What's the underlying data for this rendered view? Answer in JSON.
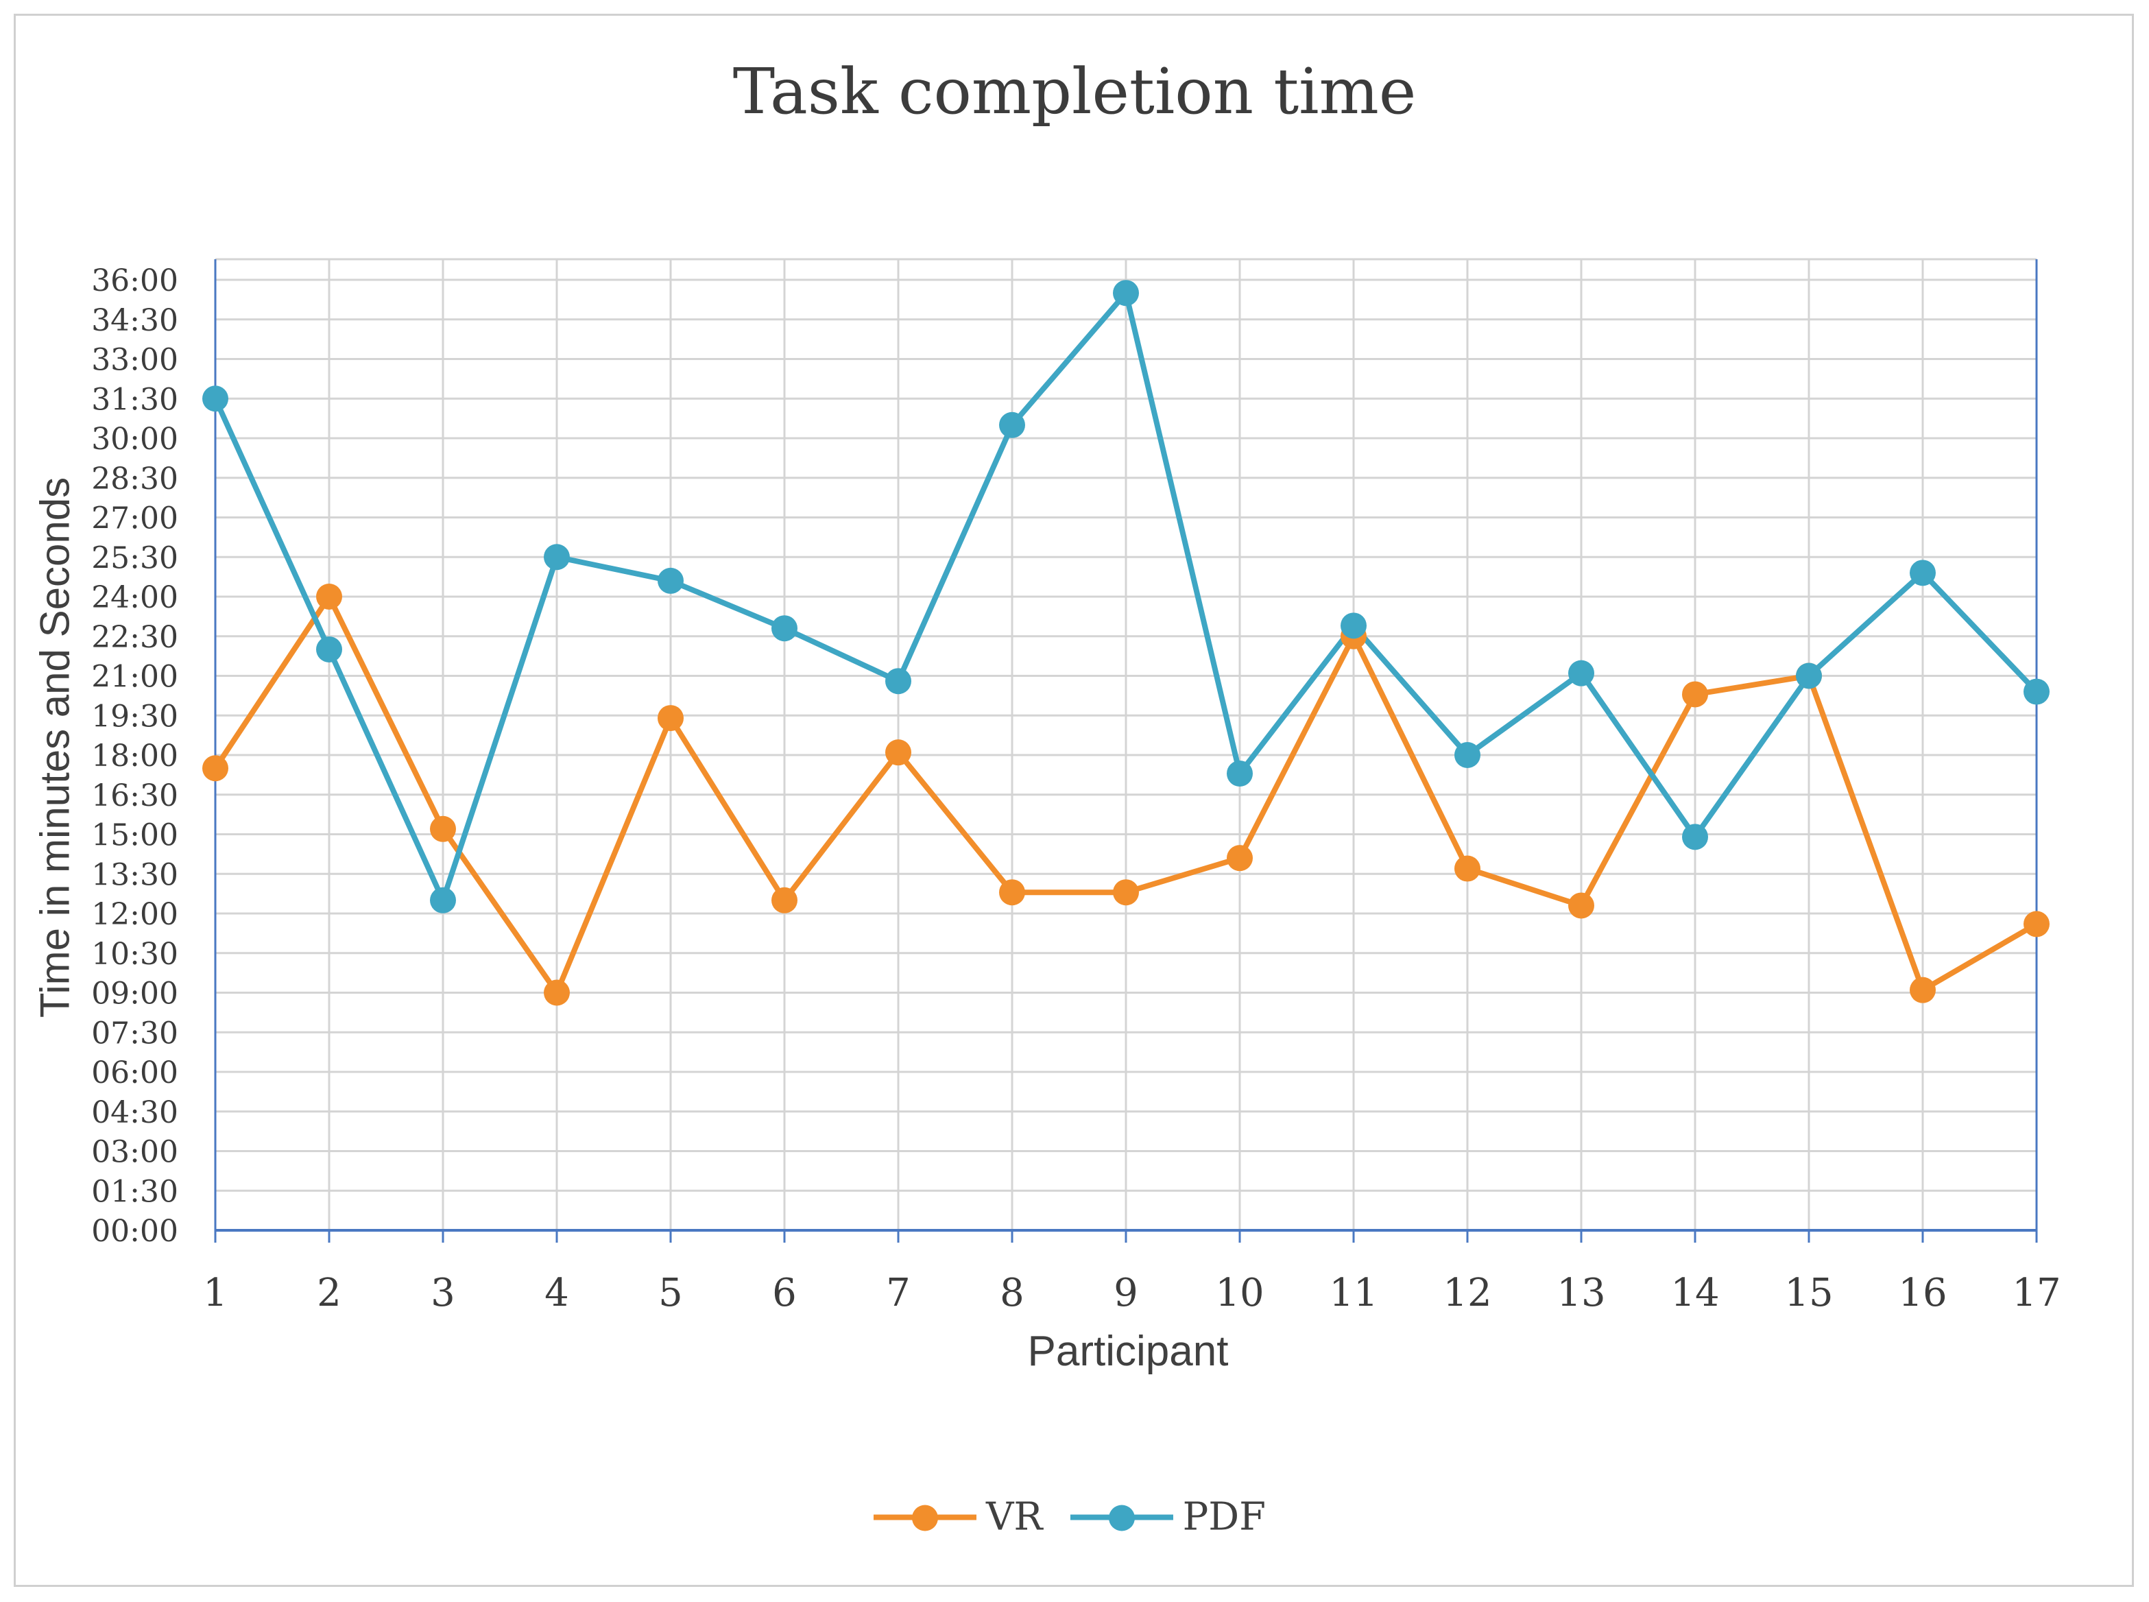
{
  "chart_data": {
    "type": "line",
    "title": "Task completion time",
    "xlabel": "Participant",
    "ylabel": "Time in minutes and Seconds",
    "categories": [
      "1",
      "2",
      "3",
      "4",
      "5",
      "6",
      "7",
      "8",
      "9",
      "10",
      "11",
      "12",
      "13",
      "14",
      "15",
      "16",
      "17"
    ],
    "y_ticks": [
      "00:00",
      "01:30",
      "03:00",
      "04:30",
      "06:00",
      "07:30",
      "09:00",
      "10:30",
      "12:00",
      "13:30",
      "15:00",
      "16:30",
      "18:00",
      "19:30",
      "21:00",
      "22:30",
      "24:00",
      "25:30",
      "27:00",
      "28:30",
      "30:00",
      "31:30",
      "33:00",
      "34:30",
      "36:00"
    ],
    "ylim_minutes": [
      0,
      36
    ],
    "y_units": "minutes",
    "grid": true,
    "legend_position": "bottom",
    "series": [
      {
        "name": "VR",
        "color": "#f28e2b",
        "values": [
          17.5,
          24.0,
          15.2,
          9.0,
          19.4,
          12.5,
          18.1,
          12.8,
          12.8,
          14.1,
          22.5,
          13.7,
          12.3,
          20.3,
          21.0,
          9.1,
          11.6
        ]
      },
      {
        "name": "PDF",
        "color": "#3ea6c4",
        "values": [
          31.5,
          22.0,
          12.5,
          25.5,
          24.6,
          22.8,
          20.8,
          30.5,
          35.5,
          17.3,
          22.9,
          18.0,
          21.1,
          14.9,
          21.0,
          24.9,
          20.4
        ]
      }
    ]
  }
}
